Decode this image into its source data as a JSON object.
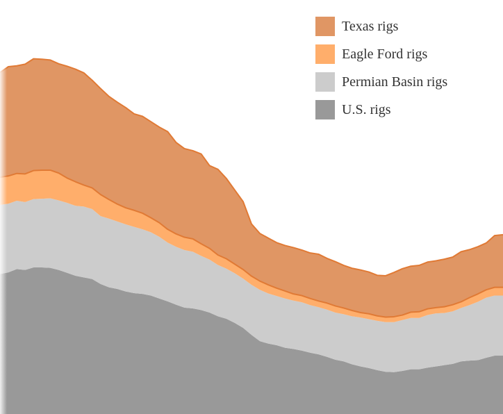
{
  "chart_data": {
    "type": "area",
    "stacked": true,
    "x": [
      0,
      1,
      2,
      3,
      4,
      5,
      6,
      7,
      8,
      9,
      10,
      11,
      12,
      13,
      14,
      15,
      16,
      17,
      18,
      19,
      20,
      21,
      22,
      23,
      24,
      25,
      26,
      27,
      28,
      29,
      30,
      31,
      32,
      33,
      34,
      35,
      36,
      37,
      38,
      39,
      40,
      41,
      42,
      43,
      44,
      45,
      46,
      47,
      48,
      49,
      50,
      51,
      52,
      53,
      54,
      55,
      56,
      57,
      58,
      59,
      60
    ],
    "ylim": [
      0,
      1000
    ],
    "series": [
      {
        "name": "U.S. rigs",
        "color": "#999999",
        "values": [
          338,
          342,
          350,
          348,
          354,
          354,
          353,
          348,
          341,
          334,
          330,
          326,
          314,
          306,
          302,
          296,
          292,
          290,
          286,
          279,
          272,
          264,
          257,
          255,
          251,
          245,
          236,
          230,
          220,
          208,
          191,
          176,
          170,
          166,
          160,
          157,
          153,
          148,
          144,
          138,
          131,
          127,
          120,
          115,
          111,
          106,
          102,
          101,
          104,
          108,
          108,
          112,
          115,
          118,
          121,
          127,
          129,
          130,
          136,
          141,
          141
        ]
      },
      {
        "name": "Permian Basin rigs",
        "color": "#cccccc",
        "values": [
          167,
          166,
          165,
          164,
          165,
          166,
          168,
          168,
          169,
          169,
          171,
          169,
          164,
          166,
          163,
          162,
          160,
          156,
          153,
          149,
          142,
          140,
          139,
          137,
          131,
          128,
          124,
          121,
          120,
          119,
          121,
          124,
          121,
          119,
          119,
          117,
          117,
          115,
          114,
          114,
          114,
          114,
          116,
          118,
          118,
          119,
          120,
          121,
          123,
          124,
          124,
          127,
          128,
          126,
          127,
          129,
          134,
          141,
          145,
          145,
          145
        ]
      },
      {
        "name": "Eagle Ford rigs",
        "color": "#ffae6b",
        "values": [
          67,
          67,
          66,
          68,
          69,
          69,
          68,
          66,
          60,
          58,
          52,
          51,
          52,
          46,
          42,
          40,
          40,
          39,
          35,
          34,
          32,
          31,
          31,
          31,
          29,
          27,
          24,
          24,
          22,
          22,
          21,
          21,
          21,
          19,
          18,
          16,
          16,
          16,
          15,
          16,
          16,
          15,
          14,
          12,
          13,
          12,
          12,
          13,
          12,
          14,
          15,
          15,
          14,
          15,
          16,
          15,
          18,
          19,
          19,
          20,
          20
        ]
      },
      {
        "name": "Texas rigs",
        "color": "#e09664",
        "values": [
          253,
          264,
          260,
          265,
          270,
          268,
          266,
          264,
          270,
          272,
          271,
          260,
          256,
          249,
          246,
          242,
          233,
          234,
          232,
          231,
          236,
          221,
          214,
          213,
          217,
          200,
          207,
          194,
          179,
          164,
          126,
          115,
          113,
          110,
          110,
          112,
          110,
          110,
          113,
          108,
          107,
          103,
          102,
          103,
          101,
          98,
          100,
          107,
          112,
          111,
          112,
          113,
          113,
          115,
          115,
          121,
          116,
          114,
          113,
          125,
          127
        ]
      }
    ]
  },
  "legend": {
    "items": [
      {
        "label": "Texas rigs",
        "color": "#e09664"
      },
      {
        "label": "Eagle Ford rigs",
        "color": "#ffae6b"
      },
      {
        "label": "Permian Basin rigs",
        "color": "#cccccc"
      },
      {
        "label": "U.S. rigs",
        "color": "#999999"
      }
    ]
  },
  "stroke_color": "#e07a35"
}
